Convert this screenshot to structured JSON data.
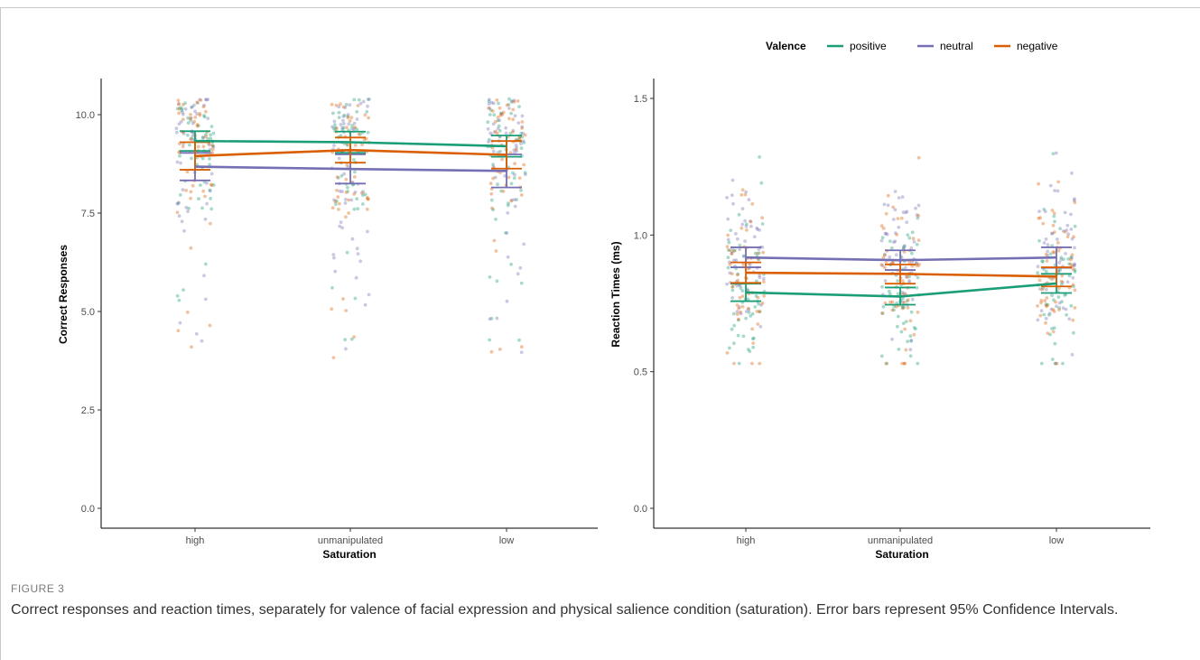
{
  "figure": {
    "label": "FIGURE 3",
    "caption": "Correct responses and reaction times, separately for valence of facial expression and physical salience condition (saturation). Error bars represent 95% Confidence Intervals."
  },
  "legend": {
    "title": "Valence",
    "placement": "top",
    "items": [
      {
        "name": "positive",
        "color": "#1b9e77"
      },
      {
        "name": "neutral",
        "color": "#7570b3"
      },
      {
        "name": "negative",
        "color": "#d95f02"
      }
    ]
  },
  "chart_data": [
    {
      "type": "line",
      "title": "",
      "xlabel": "Saturation",
      "ylabel": "Correct Responses",
      "categories": [
        "high",
        "unmanipulated",
        "low"
      ],
      "ylim": [
        0,
        10.4
      ],
      "yticks": [
        0.0,
        2.5,
        5.0,
        7.5,
        10.0
      ],
      "ytick_labels": [
        "0.0",
        "2.5",
        "5.0",
        "7.5",
        "10.0"
      ],
      "grid": false,
      "jitter_points": true,
      "series": [
        {
          "name": "positive",
          "color": "#1b9e77",
          "values": [
            9.33,
            9.3,
            9.2
          ],
          "ci_low": [
            9.08,
            9.03,
            8.93
          ],
          "ci_high": [
            9.58,
            9.57,
            9.47
          ]
        },
        {
          "name": "neutral",
          "color": "#7570b3",
          "values": [
            8.68,
            8.62,
            8.57
          ],
          "ci_low": [
            8.33,
            8.25,
            8.15
          ],
          "ci_high": [
            9.03,
            8.99,
            8.99
          ]
        },
        {
          "name": "negative",
          "color": "#d95f02",
          "values": [
            8.95,
            9.1,
            8.98
          ],
          "ci_low": [
            8.6,
            8.78,
            8.63
          ],
          "ci_high": [
            9.3,
            9.42,
            9.33
          ]
        }
      ]
    },
    {
      "type": "line",
      "title": "",
      "xlabel": "Saturation",
      "ylabel": "Reaction Times (ms)",
      "categories": [
        "high",
        "unmanipulated",
        "low"
      ],
      "ylim": [
        0,
        1.52
      ],
      "yticks": [
        0.0,
        0.5,
        1.0,
        1.5
      ],
      "ytick_labels": [
        "0.0",
        "0.5",
        "1.0",
        "1.5"
      ],
      "grid": false,
      "jitter_points": true,
      "series": [
        {
          "name": "positive",
          "color": "#1b9e77",
          "values": [
            0.79,
            0.775,
            0.823
          ],
          "ci_low": [
            0.758,
            0.745,
            0.788
          ],
          "ci_high": [
            0.822,
            0.808,
            0.858
          ]
        },
        {
          "name": "neutral",
          "color": "#7570b3",
          "values": [
            0.918,
            0.908,
            0.918
          ],
          "ci_low": [
            0.882,
            0.872,
            0.88
          ],
          "ci_high": [
            0.955,
            0.944,
            0.955
          ]
        },
        {
          "name": "negative",
          "color": "#d95f02",
          "values": [
            0.862,
            0.858,
            0.848
          ],
          "ci_low": [
            0.825,
            0.822,
            0.812
          ],
          "ci_high": [
            0.9,
            0.892,
            0.882
          ]
        }
      ]
    }
  ]
}
